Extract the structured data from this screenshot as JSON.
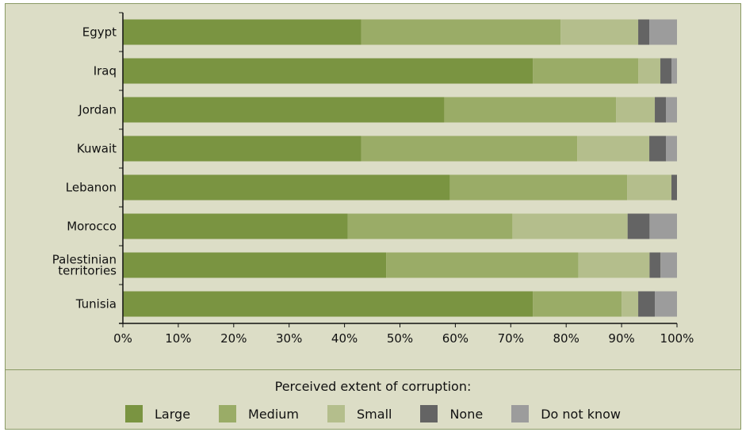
{
  "chart_data": {
    "type": "bar",
    "orientation": "horizontal",
    "stacked": true,
    "categories": [
      "Egypt",
      "Iraq",
      "Jordan",
      "Kuwait",
      "Lebanon",
      "Morocco",
      "Palestinian territories",
      "Tunisia"
    ],
    "category_lines": [
      [
        "Egypt"
      ],
      [
        "Iraq"
      ],
      [
        "Jordan"
      ],
      [
        "Kuwait"
      ],
      [
        "Lebanon"
      ],
      [
        "Morocco"
      ],
      [
        "Palestinian",
        "territories"
      ],
      [
        "Tunisia"
      ]
    ],
    "series": [
      {
        "name": "Large",
        "color": "#7a9441",
        "values": [
          43,
          74,
          58,
          43,
          59,
          41,
          48,
          74
        ]
      },
      {
        "name": "Medium",
        "color": "#9aac67",
        "values": [
          36,
          19,
          31,
          39,
          32,
          30,
          35,
          16
        ]
      },
      {
        "name": "Small",
        "color": "#b4be8c",
        "values": [
          14,
          4,
          7,
          13,
          8,
          21,
          13,
          3
        ]
      },
      {
        "name": "None",
        "color": "#646464",
        "values": [
          2,
          2,
          2,
          3,
          1,
          4,
          2,
          3
        ]
      },
      {
        "name": "Do not know",
        "color": "#9c9c9c",
        "values": [
          5,
          1,
          2,
          2,
          0,
          5,
          3,
          4
        ]
      }
    ],
    "x_ticks": [
      "0%",
      "10%",
      "20%",
      "30%",
      "40%",
      "50%",
      "60%",
      "70%",
      "80%",
      "90%",
      "100%"
    ],
    "xlim": [
      0,
      100
    ],
    "grid": false,
    "legend_title": "Perceived extent of corruption:",
    "legend_position": "bottom"
  }
}
